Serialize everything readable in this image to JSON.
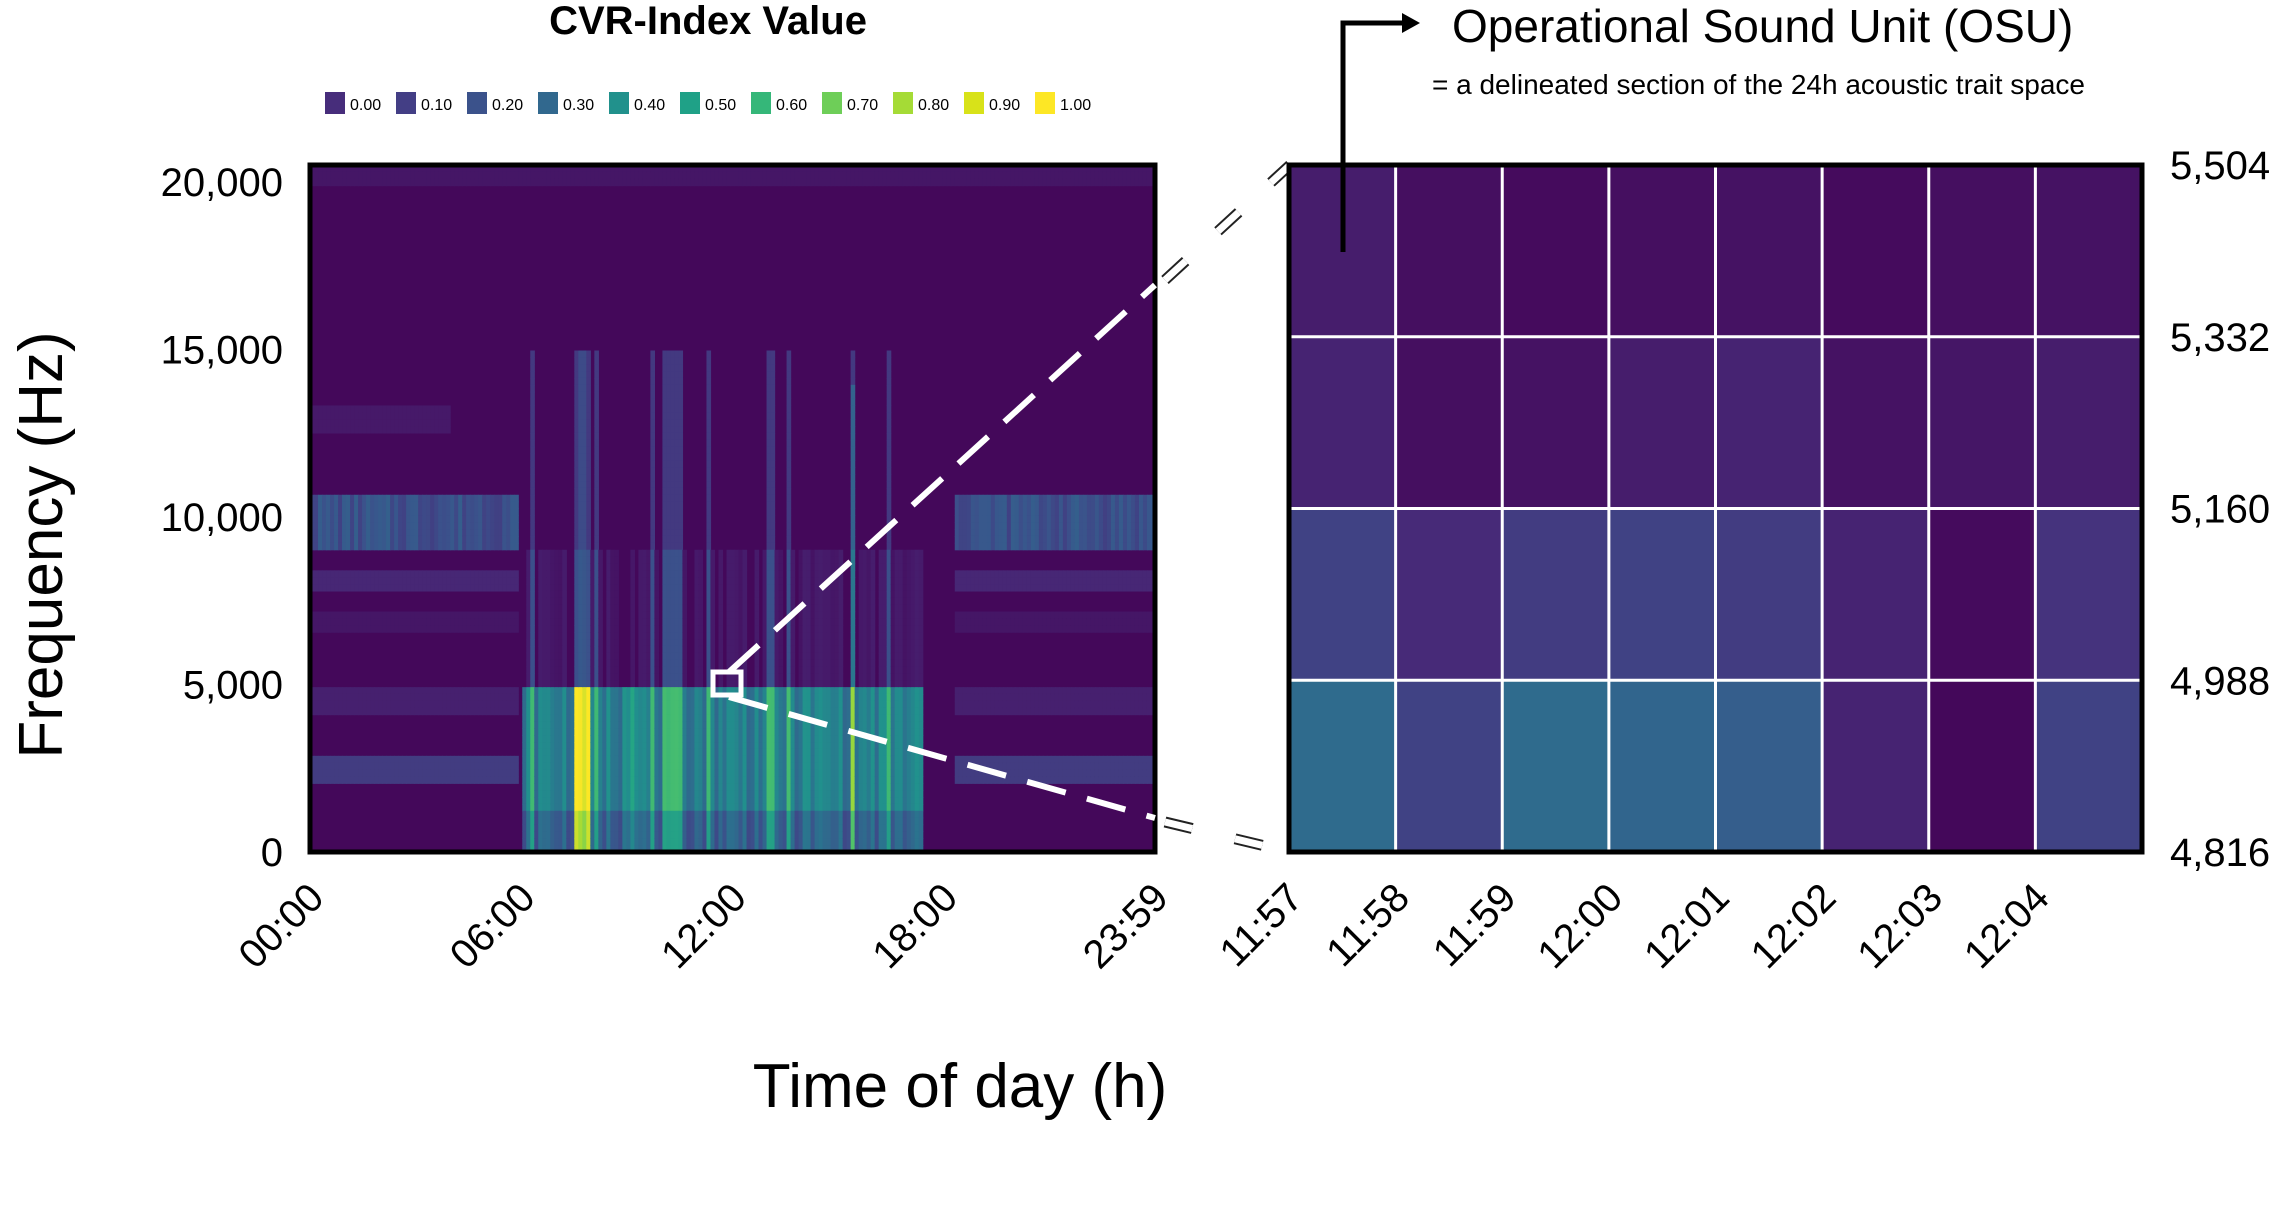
{
  "chart_data": [
    {
      "type": "heatmap",
      "name": "spectrogram",
      "xlabel": "Time of day (h)",
      "ylabel": "Frequency (Hz)",
      "xticks": [
        "00:00",
        "06:00",
        "12:00",
        "18:00",
        "23:59"
      ],
      "yticks": [
        "0",
        "5,000",
        "10,000",
        "15,000",
        "20,000"
      ],
      "xlim_hours": [
        0,
        24
      ],
      "ylim": [
        0,
        20500
      ],
      "colorbar": {
        "title": "CVR-Index Value",
        "ticks": [
          "0.00",
          "0.10",
          "0.20",
          "0.30",
          "0.40",
          "0.50",
          "0.60",
          "0.70",
          "0.80",
          "0.90",
          "1.00"
        ],
        "colors": [
          "#472d7b",
          "#433e85",
          "#3b528b",
          "#31688e",
          "#21918c",
          "#1fa187",
          "#35b779",
          "#6ece58",
          "#a5db36",
          "#d8e219",
          "#fde725"
        ]
      },
      "highlight_window": {
        "x_from": "11:57",
        "x_to": "12:04",
        "y_from": 4816,
        "y_to": 5504
      }
    },
    {
      "type": "heatmap",
      "name": "osu_zoom",
      "title": "Operational Sound Unit (OSU)",
      "subtitle": "= a delineated section of the 24h acoustic trait space",
      "xticks": [
        "11:57",
        "11:58",
        "11:59",
        "12:00",
        "12:01",
        "12:02",
        "12:03",
        "12:04"
      ],
      "yticks": [
        "4,816",
        "4,988",
        "5,160",
        "5,332",
        "5,504"
      ],
      "rows_top_to_bottom": [
        [
          0.08,
          0.04,
          0.03,
          0.04,
          0.05,
          0.03,
          0.04,
          0.05
        ],
        [
          0.1,
          0.04,
          0.05,
          0.08,
          0.1,
          0.05,
          0.06,
          0.08
        ],
        [
          0.2,
          0.12,
          0.18,
          0.2,
          0.18,
          0.1,
          0.03,
          0.15
        ],
        [
          0.35,
          0.2,
          0.35,
          0.33,
          0.3,
          0.1,
          0.02,
          0.2
        ]
      ]
    }
  ]
}
